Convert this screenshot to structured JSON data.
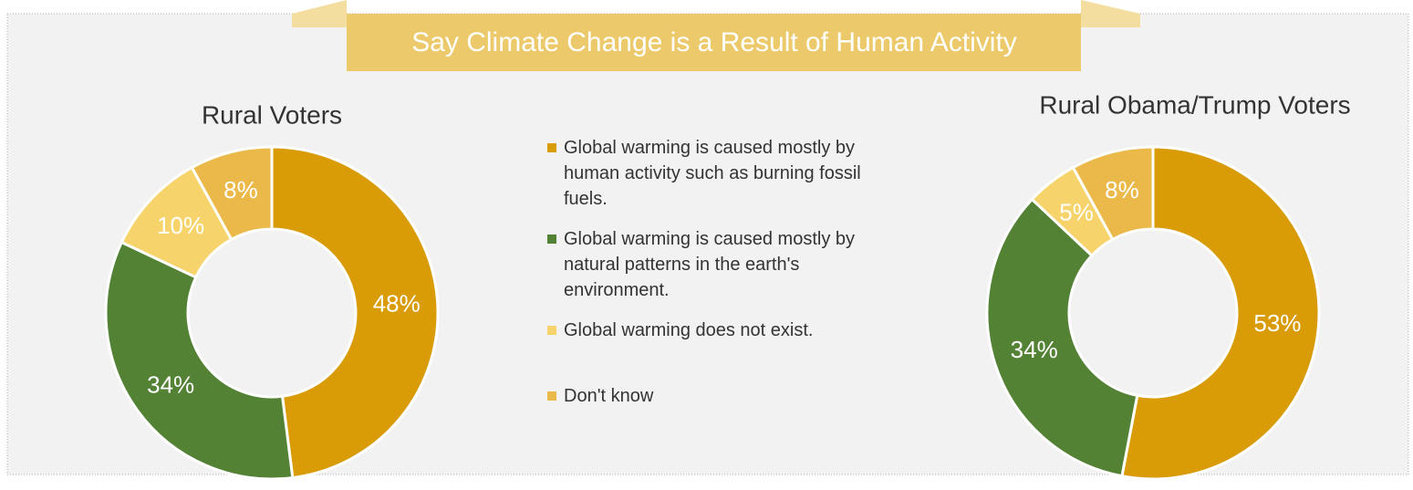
{
  "title": "Say Climate Change is a Result of Human Activity",
  "legend": {
    "categories": [
      "Global warming is caused mostly by human activity such as burning fossil fuels.",
      "Global warming is caused mostly by natural patterns in the earth's environment.",
      "Global warming does not exist.",
      "Don't know"
    ],
    "colors": [
      "#d99b06",
      "#548235",
      "#f7d46b",
      "#ebb94a"
    ]
  },
  "chart_data": [
    {
      "type": "pie",
      "donut": true,
      "title": "Rural Voters",
      "values": [
        48,
        34,
        10,
        8
      ],
      "value_labels": [
        "48%",
        "34%",
        "10%",
        "8%"
      ]
    },
    {
      "type": "pie",
      "donut": true,
      "title": "Rural Obama/Trump Voters",
      "values": [
        53,
        34,
        5,
        8
      ],
      "value_labels": [
        "53%",
        "34%",
        "5%",
        "8%"
      ]
    }
  ]
}
